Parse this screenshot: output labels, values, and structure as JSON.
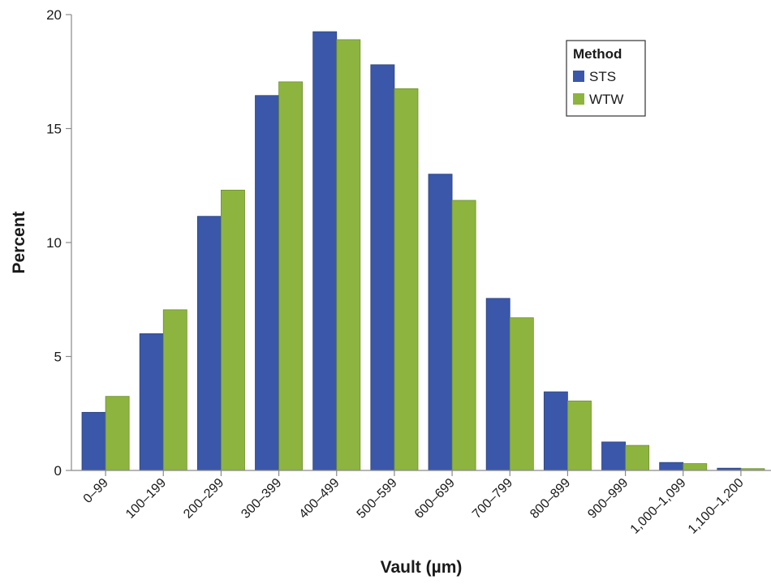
{
  "chart_data": {
    "type": "bar",
    "title": "",
    "xlabel": "Vault (µm)",
    "ylabel": "Percent",
    "ylim": [
      0,
      20
    ],
    "yticks": [
      0,
      5,
      10,
      15,
      20
    ],
    "grid": false,
    "legend": {
      "title": "Method",
      "placement": "top-right"
    },
    "categories": [
      "0–99",
      "100–199",
      "200–299",
      "300–399",
      "400–499",
      "500–599",
      "600–699",
      "700–799",
      "800–899",
      "900–999",
      "1,000–1,099",
      "1,100–1,200"
    ],
    "series": [
      {
        "name": "STS",
        "color": "#3b57a9",
        "values": [
          2.55,
          6.0,
          11.15,
          16.45,
          19.25,
          17.8,
          13.0,
          7.55,
          3.45,
          1.25,
          0.35,
          0.1
        ]
      },
      {
        "name": "WTW",
        "color": "#8db43f",
        "values": [
          3.25,
          7.05,
          12.3,
          17.05,
          18.9,
          16.75,
          11.85,
          6.7,
          3.05,
          1.1,
          0.3,
          0.08
        ]
      }
    ]
  }
}
